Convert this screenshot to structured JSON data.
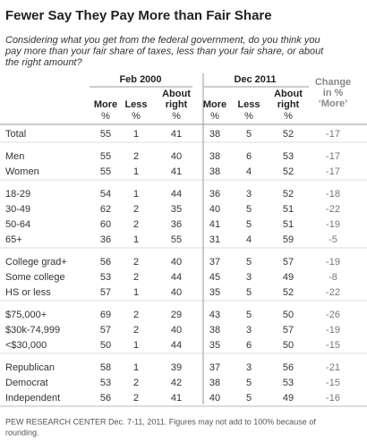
{
  "title": "Fewer Say They Pay More than Fair Share",
  "subtitle": [
    "Considering what you get from the federal government, do you think you",
    "pay more than your fair share of taxes, less than your fair share, or about",
    "the right amount?"
  ],
  "table": {
    "periods": [
      "Feb 2000",
      "Dec 2011"
    ],
    "change_header": [
      "Change",
      "in %",
      "‘More’"
    ],
    "columns": [
      [
        "More"
      ],
      [
        "Less"
      ],
      [
        "About",
        "right"
      ]
    ],
    "unit": "%",
    "groups": [
      [
        [
          "Total",
          55,
          1,
          41,
          38,
          5,
          52,
          -17
        ]
      ],
      [
        [
          "Men",
          55,
          2,
          40,
          38,
          6,
          53,
          -17
        ],
        [
          "Women",
          55,
          1,
          41,
          38,
          4,
          52,
          -17
        ]
      ],
      [
        [
          "18-29",
          54,
          1,
          44,
          36,
          3,
          52,
          -18
        ],
        [
          "30-49",
          62,
          2,
          35,
          40,
          5,
          51,
          -22
        ],
        [
          "50-64",
          60,
          2,
          36,
          41,
          5,
          51,
          -19
        ],
        [
          "65+",
          36,
          1,
          55,
          31,
          4,
          59,
          -5
        ]
      ],
      [
        [
          "College grad+",
          56,
          2,
          40,
          37,
          5,
          57,
          -19
        ],
        [
          "Some college",
          53,
          2,
          44,
          45,
          3,
          49,
          -8
        ],
        [
          "HS or less",
          57,
          1,
          40,
          35,
          5,
          52,
          -22
        ]
      ],
      [
        [
          "$75,000+",
          69,
          2,
          29,
          43,
          5,
          50,
          -26
        ],
        [
          "$30k-74,999",
          57,
          2,
          40,
          38,
          3,
          57,
          -19
        ],
        [
          "<$30,000",
          50,
          1,
          44,
          35,
          6,
          50,
          -15
        ]
      ],
      [
        [
          "Republican",
          58,
          1,
          39,
          37,
          3,
          56,
          -21
        ],
        [
          "Democrat",
          53,
          2,
          42,
          38,
          5,
          53,
          -15
        ],
        [
          "Independent",
          56,
          2,
          41,
          40,
          5,
          49,
          -16
        ]
      ]
    ]
  },
  "footer": [
    "PEW RESEARCH CENTER Dec. 7-11, 2011. Figures may not add to 100% because of",
    "rounding."
  ]
}
